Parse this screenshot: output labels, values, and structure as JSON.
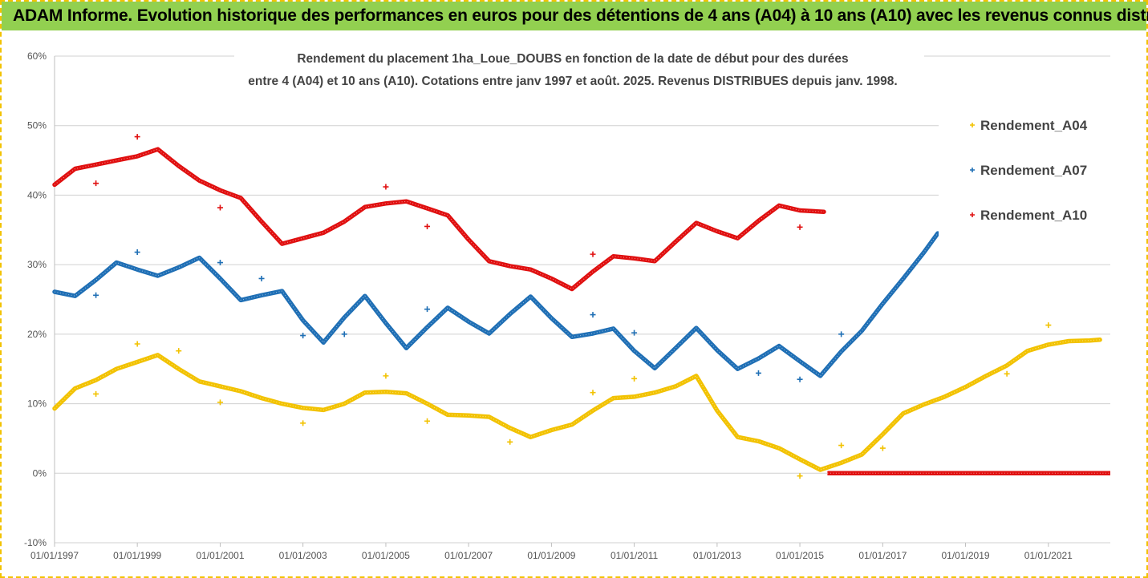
{
  "banner": {
    "text": "ADAM Informe. Evolution historique des performances en euros pour des détentions de 4 ans (A04) à 10 ans (A10) avec les revenus connus distribués"
  },
  "chart_data": {
    "type": "scatter",
    "title_lines": [
      "Rendement du placement 1ha_Loue_DOUBS en fonction de la date de début pour des durées",
      "entre 4 (A04) et 10 ans (A10). Cotations entre janv 1997 et août. 2025. Revenus DISTRIBUES depuis janv. 1998."
    ],
    "x_axis": {
      "type": "date",
      "range": [
        "1997-01-01",
        "2022-07-01"
      ],
      "tick_labels": [
        "01/01/1997",
        "01/01/1999",
        "01/01/2001",
        "01/01/2003",
        "01/01/2005",
        "01/01/2007",
        "01/01/2009",
        "01/01/2011",
        "01/01/2013",
        "01/01/2015",
        "01/01/2017",
        "01/01/2019",
        "01/01/2021"
      ]
    },
    "y_axis": {
      "range": [
        -10,
        60
      ],
      "tick_labels": [
        "-10%",
        "0%",
        "10%",
        "20%",
        "30%",
        "40%",
        "50%",
        "60%"
      ]
    },
    "grid": "horizontal",
    "legend_position": "right",
    "series": [
      {
        "name": "Rendement_A04",
        "color": "#f2c200",
        "points": [
          [
            "1997-01-01",
            9.3
          ],
          [
            "1997-07-01",
            12.2
          ],
          [
            "1998-01-01",
            13.4
          ],
          [
            "1998-07-01",
            15.0
          ],
          [
            "1999-01-01",
            16.0
          ],
          [
            "1999-07-01",
            17.0
          ],
          [
            "2000-01-01",
            15.0
          ],
          [
            "2000-07-01",
            13.2
          ],
          [
            "2001-01-01",
            12.5
          ],
          [
            "2001-07-01",
            11.8
          ],
          [
            "2002-01-01",
            10.8
          ],
          [
            "2002-07-01",
            10.0
          ],
          [
            "2003-01-01",
            9.4
          ],
          [
            "2003-07-01",
            9.1
          ],
          [
            "2004-01-01",
            10.0
          ],
          [
            "2004-07-01",
            11.6
          ],
          [
            "2005-01-01",
            11.7
          ],
          [
            "2005-07-01",
            11.5
          ],
          [
            "2006-01-01",
            10.0
          ],
          [
            "2006-07-01",
            8.4
          ],
          [
            "2007-01-01",
            8.3
          ],
          [
            "2007-07-01",
            8.1
          ],
          [
            "2008-01-01",
            6.5
          ],
          [
            "2008-07-01",
            5.2
          ],
          [
            "2009-01-01",
            6.2
          ],
          [
            "2009-07-01",
            7.0
          ],
          [
            "2010-01-01",
            9.0
          ],
          [
            "2010-07-01",
            10.8
          ],
          [
            "2011-01-01",
            11.0
          ],
          [
            "2011-07-01",
            11.6
          ],
          [
            "2012-01-01",
            12.5
          ],
          [
            "2012-07-01",
            14.0
          ],
          [
            "2013-01-01",
            9.0
          ],
          [
            "2013-07-01",
            5.2
          ],
          [
            "2014-01-01",
            4.6
          ],
          [
            "2014-07-01",
            3.6
          ],
          [
            "2015-01-01",
            2.0
          ],
          [
            "2015-07-01",
            0.5
          ],
          [
            "2016-01-01",
            1.5
          ],
          [
            "2016-07-01",
            2.7
          ],
          [
            "2017-01-01",
            5.6
          ],
          [
            "2017-07-01",
            8.6
          ],
          [
            "2018-01-01",
            9.9
          ],
          [
            "2018-07-01",
            11.0
          ],
          [
            "2019-01-01",
            12.4
          ],
          [
            "2019-07-01",
            14.0
          ],
          [
            "2020-01-01",
            15.5
          ],
          [
            "2020-07-01",
            17.6
          ],
          [
            "2021-01-01",
            18.5
          ],
          [
            "2021-07-01",
            19.0
          ],
          [
            "2022-01-01",
            19.1
          ],
          [
            "2022-04-01",
            19.2
          ]
        ],
        "outliers": [
          [
            "1998-01-01",
            11.4
          ],
          [
            "1999-01-01",
            18.6
          ],
          [
            "2000-01-01",
            17.6
          ],
          [
            "2001-01-01",
            10.2
          ],
          [
            "2003-01-01",
            7.2
          ],
          [
            "2005-01-01",
            14.0
          ],
          [
            "2006-01-01",
            7.5
          ],
          [
            "2008-01-01",
            4.5
          ],
          [
            "2010-01-01",
            11.6
          ],
          [
            "2011-01-01",
            13.6
          ],
          [
            "2015-01-01",
            -0.4
          ],
          [
            "2016-01-01",
            4.0
          ],
          [
            "2017-01-01",
            3.6
          ],
          [
            "2020-01-01",
            14.3
          ],
          [
            "2021-01-01",
            21.3
          ]
        ]
      },
      {
        "name": "Rendement_A07",
        "color": "#1f6fb5",
        "points": [
          [
            "1997-01-01",
            26.1
          ],
          [
            "1997-07-01",
            25.5
          ],
          [
            "1998-01-01",
            27.8
          ],
          [
            "1998-07-01",
            30.3
          ],
          [
            "1999-01-01",
            29.3
          ],
          [
            "1999-07-01",
            28.4
          ],
          [
            "2000-01-01",
            29.6
          ],
          [
            "2000-07-01",
            31.0
          ],
          [
            "2001-01-01",
            28.0
          ],
          [
            "2001-07-01",
            24.9
          ],
          [
            "2002-01-01",
            25.6
          ],
          [
            "2002-07-01",
            26.2
          ],
          [
            "2003-01-01",
            22.0
          ],
          [
            "2003-07-01",
            18.8
          ],
          [
            "2004-01-01",
            22.4
          ],
          [
            "2004-07-01",
            25.5
          ],
          [
            "2005-01-01",
            21.6
          ],
          [
            "2005-07-01",
            18.0
          ],
          [
            "2006-01-01",
            21.0
          ],
          [
            "2006-07-01",
            23.8
          ],
          [
            "2007-01-01",
            21.8
          ],
          [
            "2007-07-01",
            20.1
          ],
          [
            "2008-01-01",
            22.9
          ],
          [
            "2008-07-01",
            25.4
          ],
          [
            "2009-01-01",
            22.3
          ],
          [
            "2009-07-01",
            19.6
          ],
          [
            "2010-01-01",
            20.1
          ],
          [
            "2010-07-01",
            20.8
          ],
          [
            "2011-01-01",
            17.6
          ],
          [
            "2011-07-01",
            15.1
          ],
          [
            "2012-01-01",
            18.0
          ],
          [
            "2012-07-01",
            20.9
          ],
          [
            "2013-01-01",
            17.7
          ],
          [
            "2013-07-01",
            15.0
          ],
          [
            "2014-01-01",
            16.5
          ],
          [
            "2014-07-01",
            18.3
          ],
          [
            "2015-01-01",
            16.1
          ],
          [
            "2015-07-01",
            14.0
          ],
          [
            "2016-01-01",
            17.5
          ],
          [
            "2016-07-01",
            20.5
          ],
          [
            "2017-01-01",
            24.4
          ],
          [
            "2017-07-01",
            28.0
          ],
          [
            "2018-01-01",
            31.8
          ],
          [
            "2018-05-01",
            34.5
          ]
        ],
        "outliers": [
          [
            "1998-01-01",
            25.6
          ],
          [
            "1999-01-01",
            31.8
          ],
          [
            "2001-01-01",
            30.3
          ],
          [
            "2002-01-01",
            28.0
          ],
          [
            "2003-01-01",
            19.8
          ],
          [
            "2004-01-01",
            20.0
          ],
          [
            "2006-01-01",
            23.6
          ],
          [
            "2010-01-01",
            22.8
          ],
          [
            "2011-01-01",
            20.2
          ],
          [
            "2014-01-01",
            14.4
          ],
          [
            "2015-01-01",
            13.5
          ],
          [
            "2016-01-01",
            20.0
          ]
        ]
      },
      {
        "name": "Rendement_A10",
        "color": "#e01010",
        "points": [
          [
            "1997-01-01",
            41.5
          ],
          [
            "1997-07-01",
            43.8
          ],
          [
            "1998-01-01",
            44.4
          ],
          [
            "1998-07-01",
            45.0
          ],
          [
            "1999-01-01",
            45.6
          ],
          [
            "1999-07-01",
            46.6
          ],
          [
            "2000-01-01",
            44.2
          ],
          [
            "2000-07-01",
            42.1
          ],
          [
            "2001-01-01",
            40.7
          ],
          [
            "2001-07-01",
            39.6
          ],
          [
            "2002-01-01",
            36.2
          ],
          [
            "2002-07-01",
            33.0
          ],
          [
            "2003-01-01",
            33.8
          ],
          [
            "2003-07-01",
            34.6
          ],
          [
            "2004-01-01",
            36.2
          ],
          [
            "2004-07-01",
            38.3
          ],
          [
            "2005-01-01",
            38.8
          ],
          [
            "2005-07-01",
            39.1
          ],
          [
            "2006-01-01",
            38.1
          ],
          [
            "2006-07-01",
            37.1
          ],
          [
            "2007-01-01",
            33.6
          ],
          [
            "2007-07-01",
            30.5
          ],
          [
            "2008-01-01",
            29.8
          ],
          [
            "2008-07-01",
            29.3
          ],
          [
            "2009-01-01",
            28.0
          ],
          [
            "2009-07-01",
            26.5
          ],
          [
            "2010-01-01",
            29.0
          ],
          [
            "2010-07-01",
            31.2
          ],
          [
            "2011-01-01",
            30.9
          ],
          [
            "2011-07-01",
            30.5
          ],
          [
            "2012-01-01",
            33.3
          ],
          [
            "2012-07-01",
            36.0
          ],
          [
            "2013-01-01",
            34.8
          ],
          [
            "2013-07-01",
            33.8
          ],
          [
            "2014-01-01",
            36.3
          ],
          [
            "2014-07-01",
            38.5
          ],
          [
            "2015-01-01",
            37.8
          ],
          [
            "2015-08-01",
            37.6
          ]
        ],
        "outliers": [
          [
            "1998-01-01",
            41.7
          ],
          [
            "1999-01-01",
            48.4
          ],
          [
            "2001-01-01",
            38.2
          ],
          [
            "2005-01-01",
            41.2
          ],
          [
            "2006-01-01",
            35.5
          ],
          [
            "2010-01-01",
            31.5
          ],
          [
            "2015-01-01",
            35.4
          ]
        ],
        "zero_range": [
          "2015-09-01",
          "2022-07-01"
        ]
      }
    ]
  }
}
